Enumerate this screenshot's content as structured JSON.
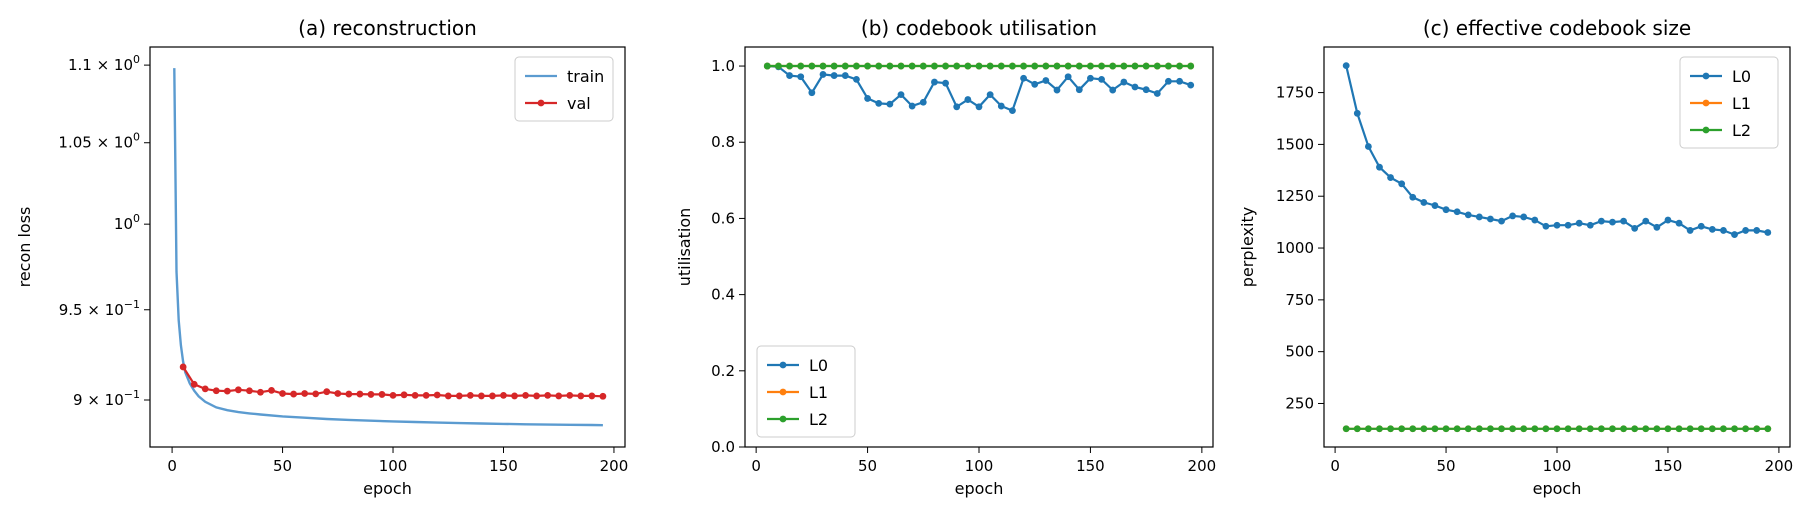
{
  "chart_data": [
    {
      "type": "line",
      "title": "(a) reconstruction",
      "xlabel": "epoch",
      "ylabel": "recon loss",
      "yscale": "log",
      "xlim": [
        -10,
        205
      ],
      "ylim": [
        0.875,
        1.112
      ],
      "x_ticks": [
        0,
        50,
        100,
        150,
        200
      ],
      "y_ticks": [
        {
          "value": 1.1,
          "mantissa": "1.1",
          "base": "10",
          "exp": "0"
        },
        {
          "value": 1.05,
          "mantissa": "1.05",
          "base": "10",
          "exp": "0"
        },
        {
          "value": 1.0,
          "mantissa": "",
          "base": "10",
          "exp": "0"
        },
        {
          "value": 0.95,
          "mantissa": "9.5",
          "base": "10",
          "exp": "−1"
        },
        {
          "value": 0.9,
          "mantissa": "9",
          "base": "10",
          "exp": "−1"
        }
      ],
      "legend": "top-right",
      "series": [
        {
          "name": "train",
          "color": "#5b9bd0",
          "marker": false,
          "x": [
            1,
            2,
            3,
            4,
            5,
            6,
            8,
            10,
            12,
            15,
            20,
            25,
            30,
            35,
            40,
            50,
            60,
            70,
            80,
            90,
            100,
            110,
            120,
            130,
            140,
            150,
            160,
            170,
            180,
            190,
            195
          ],
          "y": [
            1.098,
            0.972,
            0.944,
            0.93,
            0.921,
            0.915,
            0.909,
            0.905,
            0.902,
            0.899,
            0.896,
            0.8945,
            0.8935,
            0.8928,
            0.8922,
            0.8912,
            0.8905,
            0.8898,
            0.8893,
            0.8889,
            0.8885,
            0.8882,
            0.8879,
            0.8876,
            0.8874,
            0.8872,
            0.887,
            0.8868,
            0.8867,
            0.8866,
            0.8865
          ]
        },
        {
          "name": "val",
          "color": "#d62728",
          "marker": true,
          "x": [
            5,
            10,
            15,
            20,
            25,
            30,
            35,
            40,
            45,
            50,
            55,
            60,
            65,
            70,
            75,
            80,
            85,
            90,
            95,
            100,
            105,
            110,
            115,
            120,
            125,
            130,
            135,
            140,
            145,
            150,
            155,
            160,
            165,
            170,
            175,
            180,
            185,
            190,
            195
          ],
          "y": [
            0.918,
            0.9085,
            0.906,
            0.905,
            0.9048,
            0.9055,
            0.905,
            0.9042,
            0.9052,
            0.9035,
            0.9032,
            0.9035,
            0.9033,
            0.9045,
            0.9035,
            0.9032,
            0.9032,
            0.903,
            0.903,
            0.9025,
            0.9028,
            0.9025,
            0.9025,
            0.9027,
            0.9022,
            0.9022,
            0.9025,
            0.9022,
            0.9022,
            0.9025,
            0.9022,
            0.9025,
            0.9022,
            0.9025,
            0.9022,
            0.9025,
            0.9022,
            0.9022,
            0.902
          ]
        }
      ]
    },
    {
      "type": "line",
      "title": "(b) codebook utilisation",
      "xlabel": "epoch",
      "ylabel": "utilisation",
      "xlim": [
        -5,
        205
      ],
      "ylim": [
        0.0,
        1.05
      ],
      "x_ticks": [
        0,
        50,
        100,
        150,
        200
      ],
      "y_ticks": [
        "0.0",
        "0.2",
        "0.4",
        "0.6",
        "0.8",
        "1.0"
      ],
      "legend": "lower-left",
      "series": [
        {
          "name": "L0",
          "color": "#1f77b4",
          "marker": true,
          "x": [
            5,
            10,
            15,
            20,
            25,
            30,
            35,
            40,
            45,
            50,
            55,
            60,
            65,
            70,
            75,
            80,
            85,
            90,
            95,
            100,
            105,
            110,
            115,
            120,
            125,
            130,
            135,
            140,
            145,
            150,
            155,
            160,
            165,
            170,
            175,
            180,
            185,
            190,
            195
          ],
          "y": [
            1.0,
            0.998,
            0.975,
            0.972,
            0.93,
            0.978,
            0.975,
            0.975,
            0.965,
            0.915,
            0.902,
            0.9,
            0.925,
            0.895,
            0.905,
            0.958,
            0.955,
            0.893,
            0.912,
            0.893,
            0.925,
            0.895,
            0.883,
            0.968,
            0.952,
            0.962,
            0.937,
            0.972,
            0.938,
            0.968,
            0.965,
            0.937,
            0.958,
            0.945,
            0.938,
            0.928,
            0.96,
            0.96,
            0.95
          ]
        },
        {
          "name": "L1",
          "color": "#ff7f0e",
          "marker": true,
          "x": [
            5,
            10,
            15,
            20,
            25,
            30,
            35,
            40,
            45,
            50,
            55,
            60,
            65,
            70,
            75,
            80,
            85,
            90,
            95,
            100,
            105,
            110,
            115,
            120,
            125,
            130,
            135,
            140,
            145,
            150,
            155,
            160,
            165,
            170,
            175,
            180,
            185,
            190,
            195
          ],
          "y": [
            1.0,
            1.0,
            1.0,
            1.0,
            1.0,
            1.0,
            1.0,
            1.0,
            1.0,
            1.0,
            1.0,
            1.0,
            1.0,
            1.0,
            1.0,
            1.0,
            1.0,
            1.0,
            1.0,
            1.0,
            1.0,
            1.0,
            1.0,
            1.0,
            1.0,
            1.0,
            1.0,
            1.0,
            1.0,
            1.0,
            1.0,
            1.0,
            1.0,
            1.0,
            1.0,
            1.0,
            1.0,
            1.0,
            1.0
          ]
        },
        {
          "name": "L2",
          "color": "#2ca02c",
          "marker": true,
          "x": [
            5,
            10,
            15,
            20,
            25,
            30,
            35,
            40,
            45,
            50,
            55,
            60,
            65,
            70,
            75,
            80,
            85,
            90,
            95,
            100,
            105,
            110,
            115,
            120,
            125,
            130,
            135,
            140,
            145,
            150,
            155,
            160,
            165,
            170,
            175,
            180,
            185,
            190,
            195
          ],
          "y": [
            1.0,
            1.0,
            1.0,
            1.0,
            1.0,
            1.0,
            1.0,
            1.0,
            1.0,
            1.0,
            1.0,
            1.0,
            1.0,
            1.0,
            1.0,
            1.0,
            1.0,
            1.0,
            1.0,
            1.0,
            1.0,
            1.0,
            1.0,
            1.0,
            1.0,
            1.0,
            1.0,
            1.0,
            1.0,
            1.0,
            1.0,
            1.0,
            1.0,
            1.0,
            1.0,
            1.0,
            1.0,
            1.0,
            1.0
          ]
        }
      ]
    },
    {
      "type": "line",
      "title": "(c) effective codebook size",
      "xlabel": "epoch",
      "ylabel": "perplexity",
      "xlim": [
        -5,
        205
      ],
      "ylim": [
        40,
        1970
      ],
      "x_ticks": [
        0,
        50,
        100,
        150,
        200
      ],
      "y_ticks": [
        "250",
        "500",
        "750",
        "1000",
        "1250",
        "1500",
        "1750"
      ],
      "legend": "top-right",
      "series": [
        {
          "name": "L0",
          "color": "#1f77b4",
          "marker": true,
          "x": [
            5,
            10,
            15,
            20,
            25,
            30,
            35,
            40,
            45,
            50,
            55,
            60,
            65,
            70,
            75,
            80,
            85,
            90,
            95,
            100,
            105,
            110,
            115,
            120,
            125,
            130,
            135,
            140,
            145,
            150,
            155,
            160,
            165,
            170,
            175,
            180,
            185,
            190,
            195
          ],
          "y": [
            1880,
            1650,
            1490,
            1390,
            1340,
            1310,
            1245,
            1220,
            1205,
            1185,
            1175,
            1160,
            1150,
            1140,
            1130,
            1155,
            1150,
            1135,
            1105,
            1110,
            1110,
            1120,
            1110,
            1130,
            1125,
            1130,
            1095,
            1130,
            1100,
            1135,
            1120,
            1085,
            1105,
            1090,
            1085,
            1065,
            1085,
            1085,
            1075
          ]
        },
        {
          "name": "L1",
          "color": "#ff7f0e",
          "marker": true,
          "x": [
            5,
            10,
            15,
            20,
            25,
            30,
            35,
            40,
            45,
            50,
            55,
            60,
            65,
            70,
            75,
            80,
            85,
            90,
            95,
            100,
            105,
            110,
            115,
            120,
            125,
            130,
            135,
            140,
            145,
            150,
            155,
            160,
            165,
            170,
            175,
            180,
            185,
            190,
            195
          ],
          "y": [
            128,
            128,
            128,
            128,
            128,
            128,
            128,
            128,
            128,
            128,
            128,
            128,
            128,
            128,
            128,
            128,
            128,
            128,
            128,
            128,
            128,
            128,
            128,
            128,
            128,
            128,
            128,
            128,
            128,
            128,
            128,
            128,
            128,
            128,
            128,
            128,
            128,
            128,
            128
          ]
        },
        {
          "name": "L2",
          "color": "#2ca02c",
          "marker": true,
          "x": [
            5,
            10,
            15,
            20,
            25,
            30,
            35,
            40,
            45,
            50,
            55,
            60,
            65,
            70,
            75,
            80,
            85,
            90,
            95,
            100,
            105,
            110,
            115,
            120,
            125,
            130,
            135,
            140,
            145,
            150,
            155,
            160,
            165,
            170,
            175,
            180,
            185,
            190,
            195
          ],
          "y": [
            128,
            128,
            128,
            128,
            128,
            128,
            128,
            128,
            128,
            128,
            128,
            128,
            128,
            128,
            128,
            128,
            128,
            128,
            128,
            128,
            128,
            128,
            128,
            128,
            128,
            128,
            128,
            128,
            128,
            128,
            128,
            128,
            128,
            128,
            128,
            128,
            128,
            128,
            128
          ]
        }
      ]
    }
  ]
}
